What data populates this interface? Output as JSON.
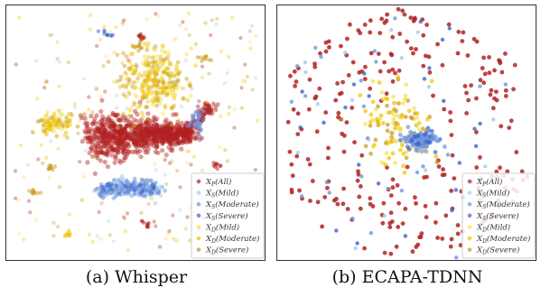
{
  "chart_data": [
    {
      "type": "scatter",
      "caption": "(a) Whisper",
      "legend_position": "bottom-right",
      "series": [
        {
          "name": "X_P(All)",
          "color": "#b22222"
        },
        {
          "name": "X_S(Mild)",
          "color": "#a9c8ee"
        },
        {
          "name": "X_S(Moderate)",
          "color": "#7096dd"
        },
        {
          "name": "X_S(Severe)",
          "color": "#3d63c9"
        },
        {
          "name": "X_D(Mild)",
          "color": "#f5e050"
        },
        {
          "name": "X_D(Moderate)",
          "color": "#f2c200"
        },
        {
          "name": "X_D(Severe)",
          "color": "#c99a18"
        }
      ]
    },
    {
      "type": "scatter",
      "caption": "(b) ECAPA-TDNN",
      "legend_position": "bottom-right",
      "series": [
        {
          "name": "X_P(All)",
          "color": "#b22222"
        },
        {
          "name": "X_S(Mild)",
          "color": "#a9c8ee"
        },
        {
          "name": "X_S(Moderate)",
          "color": "#7096dd"
        },
        {
          "name": "X_S(Severe)",
          "color": "#3d63c9"
        },
        {
          "name": "X_D(Mild)",
          "color": "#f5e050"
        },
        {
          "name": "X_D(Moderate)",
          "color": "#f2c200"
        },
        {
          "name": "X_D(Severe)",
          "color": "#c99a18"
        }
      ]
    }
  ],
  "legend_labels": [
    [
      "X",
      "P",
      "(All)"
    ],
    [
      "X",
      "S",
      "(Mild)"
    ],
    [
      "X",
      "S",
      "(Moderate)"
    ],
    [
      "X",
      "S",
      "(Severe)"
    ],
    [
      "X",
      "D",
      "(Mild)"
    ],
    [
      "X",
      "D",
      "(Moderate)"
    ],
    [
      "X",
      "D",
      "(Severe)"
    ]
  ]
}
